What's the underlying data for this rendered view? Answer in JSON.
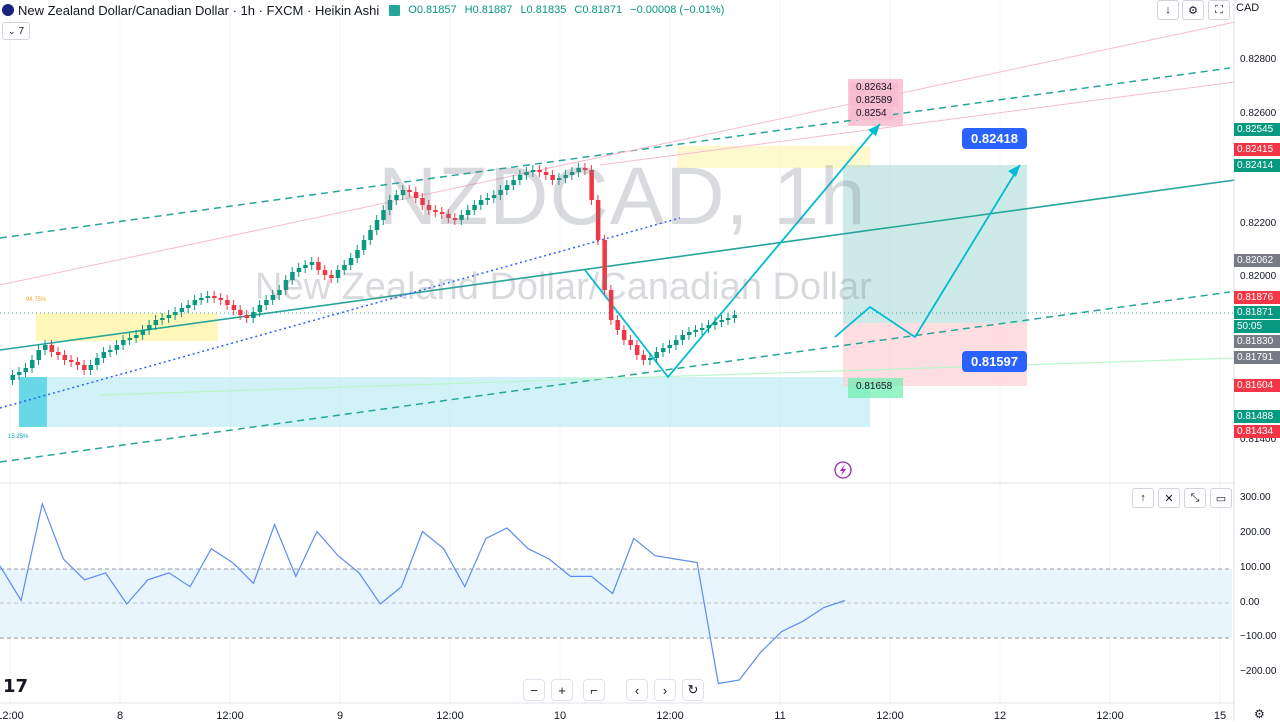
{
  "header": {
    "title": "New Zealand Dollar/Canadian Dollar · 1h · FXCM · Heikin Ashi",
    "open": "O0.81857",
    "high": "H0.81887",
    "low": "L0.81835",
    "close": "C0.81871",
    "change": "−0.00008 (−0.01%)"
  },
  "indicator_chip": {
    "label": "7"
  },
  "toolbar": {
    "currency": "CAD"
  },
  "watermark": {
    "symbol": "NZDCAD, 1h",
    "name": "New Zealand Dollar/Canadian Dollar"
  },
  "price_axis": {
    "ticks": [
      "0.82800",
      "0.82600",
      "0.82200",
      "0.82000",
      "0.81400"
    ],
    "labels": [
      {
        "text": "0.82545",
        "color": "#089981"
      },
      {
        "text": "0.82415",
        "color": "#f23645"
      },
      {
        "text": "0.82414",
        "color": "#089981"
      },
      {
        "text": "0.82062",
        "color": "#787b86"
      },
      {
        "text": "0.81876",
        "color": "#f23645"
      },
      {
        "text": "0.81871",
        "color": "#089981"
      },
      {
        "text": "50:05",
        "color": "#089981"
      },
      {
        "text": "0.81830",
        "color": "#787b86"
      },
      {
        "text": "0.81791",
        "color": "#787b86"
      },
      {
        "text": "0.81604",
        "color": "#f23645"
      },
      {
        "text": "0.81488",
        "color": "#089981"
      },
      {
        "text": "0.81434",
        "color": "#f23645"
      }
    ]
  },
  "annotations": {
    "target_up": "0.82418",
    "target_down": "0.81597",
    "pink_levels": [
      "0.82634",
      "0.82589",
      "0.8254"
    ],
    "green_level": "0.81658",
    "fib_small_top": "94.75%",
    "fib_small_bottom": "15.25%"
  },
  "oscillator": {
    "ticks": [
      "300.00",
      "200.00",
      "100.00",
      "0.00",
      "−100.00",
      "−200.00"
    ]
  },
  "time_axis": {
    "ticks": [
      "12:00",
      "8",
      "12:00",
      "9",
      "12:00",
      "10",
      "12:00",
      "11",
      "12:00",
      "12",
      "12:00",
      "15"
    ]
  },
  "colors": {
    "bull": "#089981",
    "bear": "#f23645",
    "channel": "#26a69a",
    "arrow": "#00bcd4",
    "cci": "#5b8def"
  },
  "chart_data": {
    "type": "line",
    "series": [
      {
        "values": [
          100,
          0,
          280,
          120,
          60,
          80,
          -10,
          60,
          80,
          40,
          150,
          110,
          50,
          220,
          70,
          200,
          130,
          80,
          -10,
          40,
          200,
          150,
          40,
          180,
          210,
          150,
          120,
          70,
          70,
          20,
          180,
          130,
          120,
          110,
          -240,
          -230,
          -150,
          -90,
          -60,
          -20,
          0
        ]
      }
    ],
    "ylim": [
      -230,
      320
    ]
  }
}
